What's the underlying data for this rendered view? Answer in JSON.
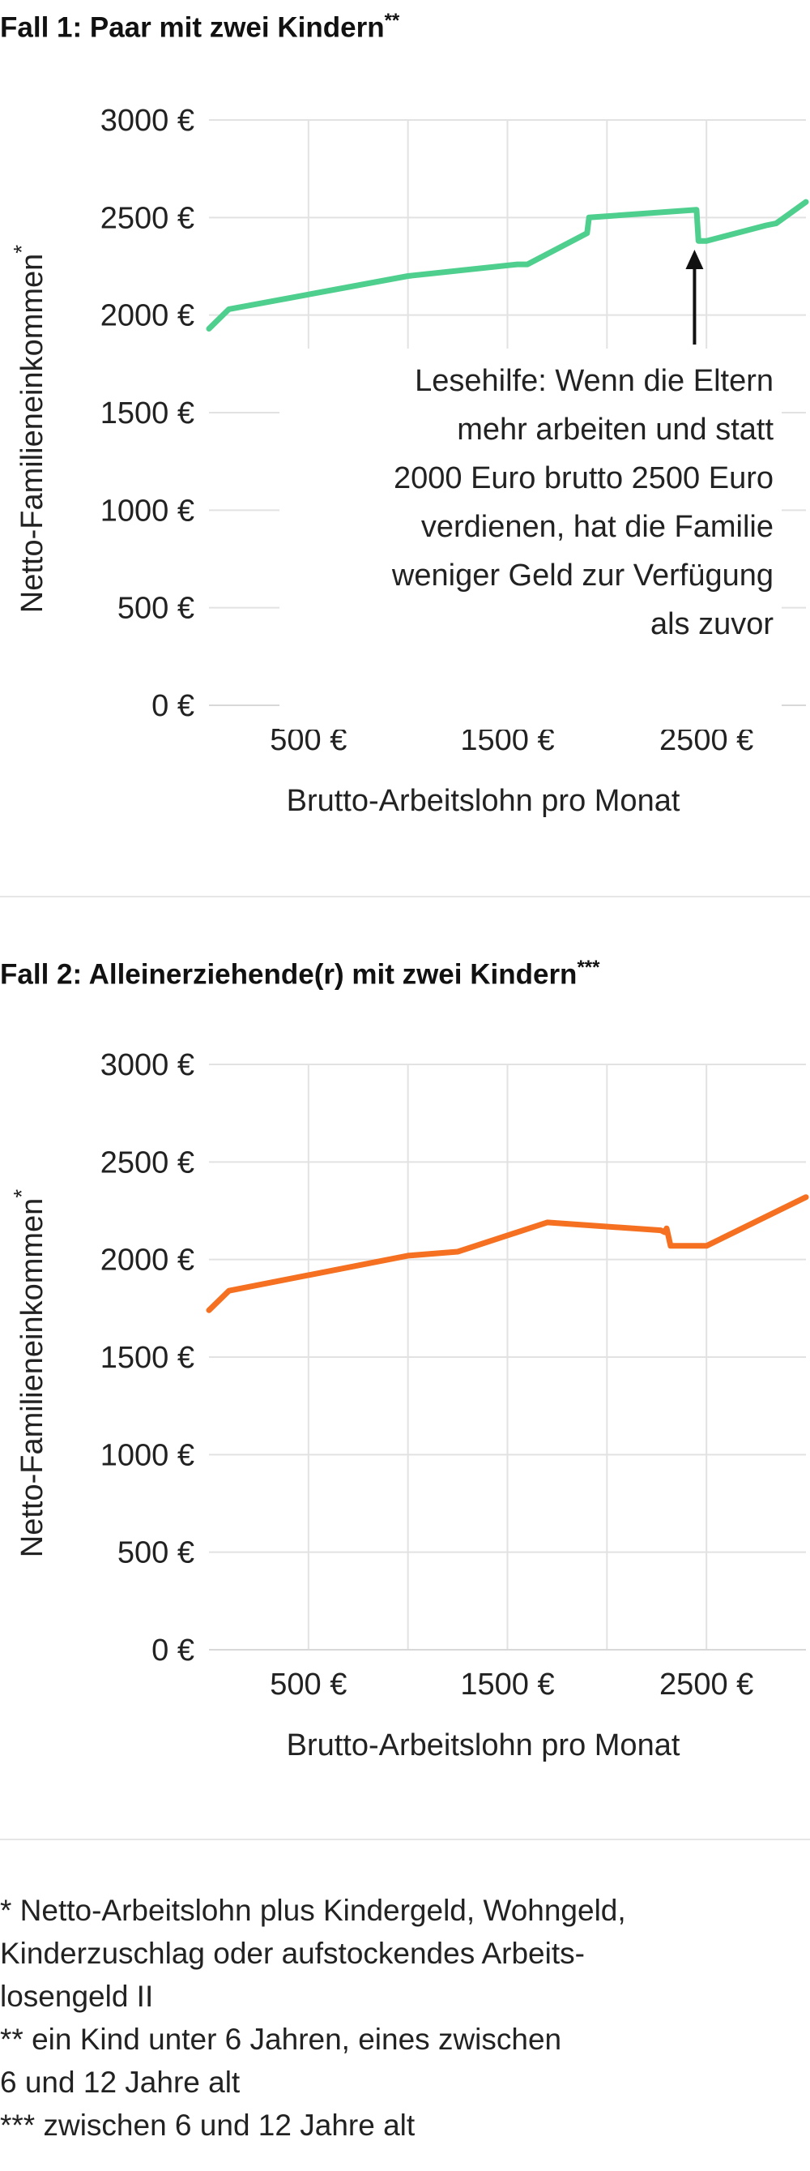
{
  "chart_data": [
    {
      "type": "line",
      "title": "Fall 1: Paar mit zwei Kindern",
      "title_suffix": "**",
      "xlabel": "Brutto-Arbeitslohn pro Monat",
      "ylabel": "Netto-Familieneinkommen",
      "ylabel_suffix": "*",
      "xlim": [
        0,
        3000
      ],
      "ylim": [
        0,
        3000
      ],
      "y_ticks": [
        0,
        500,
        1000,
        1500,
        2000,
        2500,
        3000
      ],
      "y_tick_labels": [
        "0 €",
        "500 €",
        "1000 €",
        "1500 €",
        "2000 €",
        "2500 €",
        "3000 €"
      ],
      "x_ticks": [
        500,
        1500,
        2500
      ],
      "x_tick_labels": [
        "500 €",
        "1500 €",
        "2500 €"
      ],
      "color": "#4ecf8e",
      "series": [
        {
          "x": [
            0,
            100,
            1000,
            1550,
            1600,
            1900,
            1910,
            2450,
            2460,
            2500,
            2800,
            2850,
            3000
          ],
          "y": [
            1930,
            2030,
            2200,
            2260,
            2260,
            2420,
            2500,
            2540,
            2380,
            2380,
            2460,
            2470,
            2580
          ]
        }
      ],
      "annotation": {
        "lines": [
          "Lesehilfe: Wenn die Eltern",
          "mehr arbeiten und statt",
          "2000 Euro brutto 2500 Euro",
          "verdienen, hat die Familie",
          "weniger Geld zur Verfügung",
          "als zuvor"
        ],
        "arrow_x": 2440
      }
    },
    {
      "type": "line",
      "title": "Fall 2: Alleinerziehende(r) mit zwei Kindern",
      "title_suffix": "***",
      "xlabel": "Brutto-Arbeitslohn pro Monat",
      "ylabel": "Netto-Familieneinkommen",
      "ylabel_suffix": "*",
      "xlim": [
        0,
        3000
      ],
      "ylim": [
        0,
        3000
      ],
      "y_ticks": [
        0,
        500,
        1000,
        1500,
        2000,
        2500,
        3000
      ],
      "y_tick_labels": [
        "0 €",
        "500 €",
        "1000 €",
        "1500 €",
        "2000 €",
        "2500 €",
        "3000 €"
      ],
      "x_ticks": [
        500,
        1500,
        2500
      ],
      "x_tick_labels": [
        "500 €",
        "1500 €",
        "2500 €"
      ],
      "color": "#f57020",
      "series": [
        {
          "x": [
            0,
            100,
            1000,
            1250,
            1700,
            2270,
            2290,
            2300,
            2320,
            2500,
            3000
          ],
          "y": [
            1740,
            1840,
            2020,
            2040,
            2190,
            2150,
            2140,
            2160,
            2070,
            2070,
            2320
          ]
        }
      ]
    }
  ],
  "footnotes": [
    "* Netto-Arbeitslohn plus Kindergeld, Wohngeld,\nKinderzuschlag oder aufstockendes Arbeits-\nlosengeld II",
    "** ein Kind unter 6 Jahren, eines zwischen\n6 und 12 Jahre alt",
    "*** zwischen 6 und 12 Jahre alt"
  ]
}
